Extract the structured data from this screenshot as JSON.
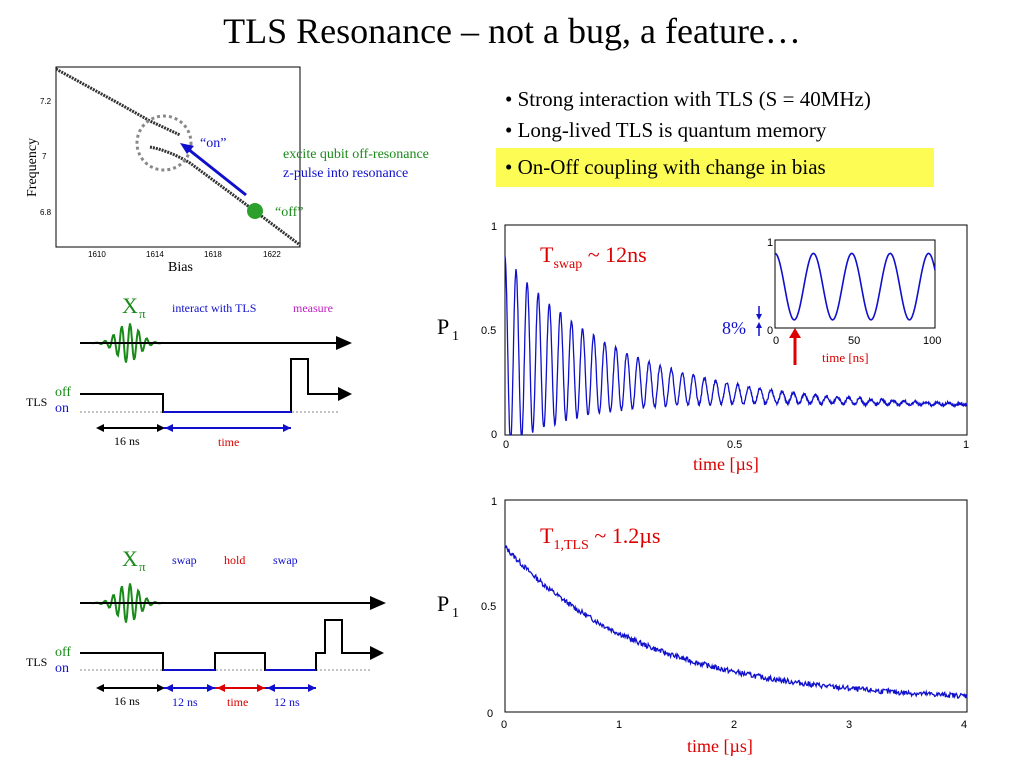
{
  "title": "TLS Resonance – not a bug, a feature…",
  "bullets": [
    "• Strong interaction with TLS (S = 40MHz)",
    "• Long-lived TLS is quantum memory"
  ],
  "highlight_bullet": "• On-Off coupling with change in bias",
  "spectroscopy": {
    "ylabel": "Frequency",
    "xlabel": "Bias",
    "yticks": [
      "7.2",
      "7",
      "6.8"
    ],
    "xticks": [
      "1610",
      "1614",
      "1618",
      "1622"
    ],
    "on_label": "“on”",
    "off_label": "“off”",
    "note_green": "excite qubit off-resonance",
    "note_blue": "z-pulse into resonance",
    "colors": {
      "green": "#1a8a1a",
      "blue": "#1010cc"
    }
  },
  "seq1": {
    "x_label": "X",
    "x_sub": "π",
    "interact": "interact with TLS",
    "measure": "measure",
    "tls": "TLS",
    "off": "off",
    "on": "on",
    "dur1": "16 ns",
    "dur2": "time"
  },
  "seq2": {
    "x_label": "X",
    "x_sub": "π",
    "swap1": "swap",
    "hold": "hold",
    "swap2": "swap",
    "tls": "TLS",
    "off": "off",
    "on": "on",
    "dur1": "16 ns",
    "dur2": "12 ns",
    "dur3": "time",
    "dur4": "12 ns"
  },
  "chart_data": [
    {
      "type": "line",
      "ylabel_main": "P",
      "ylabel_sub": "1",
      "xlabel": "time [µs]",
      "xlim": [
        0,
        1
      ],
      "ylim": [
        0,
        1
      ],
      "xticks": [
        "0",
        "0.5",
        "1"
      ],
      "yticks": [
        "0",
        "0.5",
        "1"
      ],
      "annotation_main": "T",
      "annotation_sub": "swap",
      "annotation_rest": " ~ 12ns",
      "oscillation": {
        "period_ns": 24,
        "decay_us": 0.22,
        "baseline_start": 0.4,
        "baseline_end": 0.13
      },
      "inset": {
        "xlim": [
          0,
          100
        ],
        "ylim": [
          0,
          1
        ],
        "xticks": [
          "0",
          "50",
          "100"
        ],
        "yticks": [
          "0",
          "1"
        ],
        "xlabel": "time [ns]",
        "visibility_label": "8%"
      }
    },
    {
      "type": "line",
      "ylabel_main": "P",
      "ylabel_sub": "1",
      "xlabel": "time [µs]",
      "xlim": [
        0,
        4
      ],
      "ylim": [
        0,
        1
      ],
      "xticks": [
        "0",
        "1",
        "2",
        "3",
        "4"
      ],
      "yticks": [
        "0",
        "0.5",
        "1"
      ],
      "annotation_main": "T",
      "annotation_sub": "1,TLS",
      "annotation_rest": " ~ 1.2µs",
      "decay": {
        "start": 0.78,
        "end": 0.05,
        "tau_us": 1.2
      }
    }
  ]
}
